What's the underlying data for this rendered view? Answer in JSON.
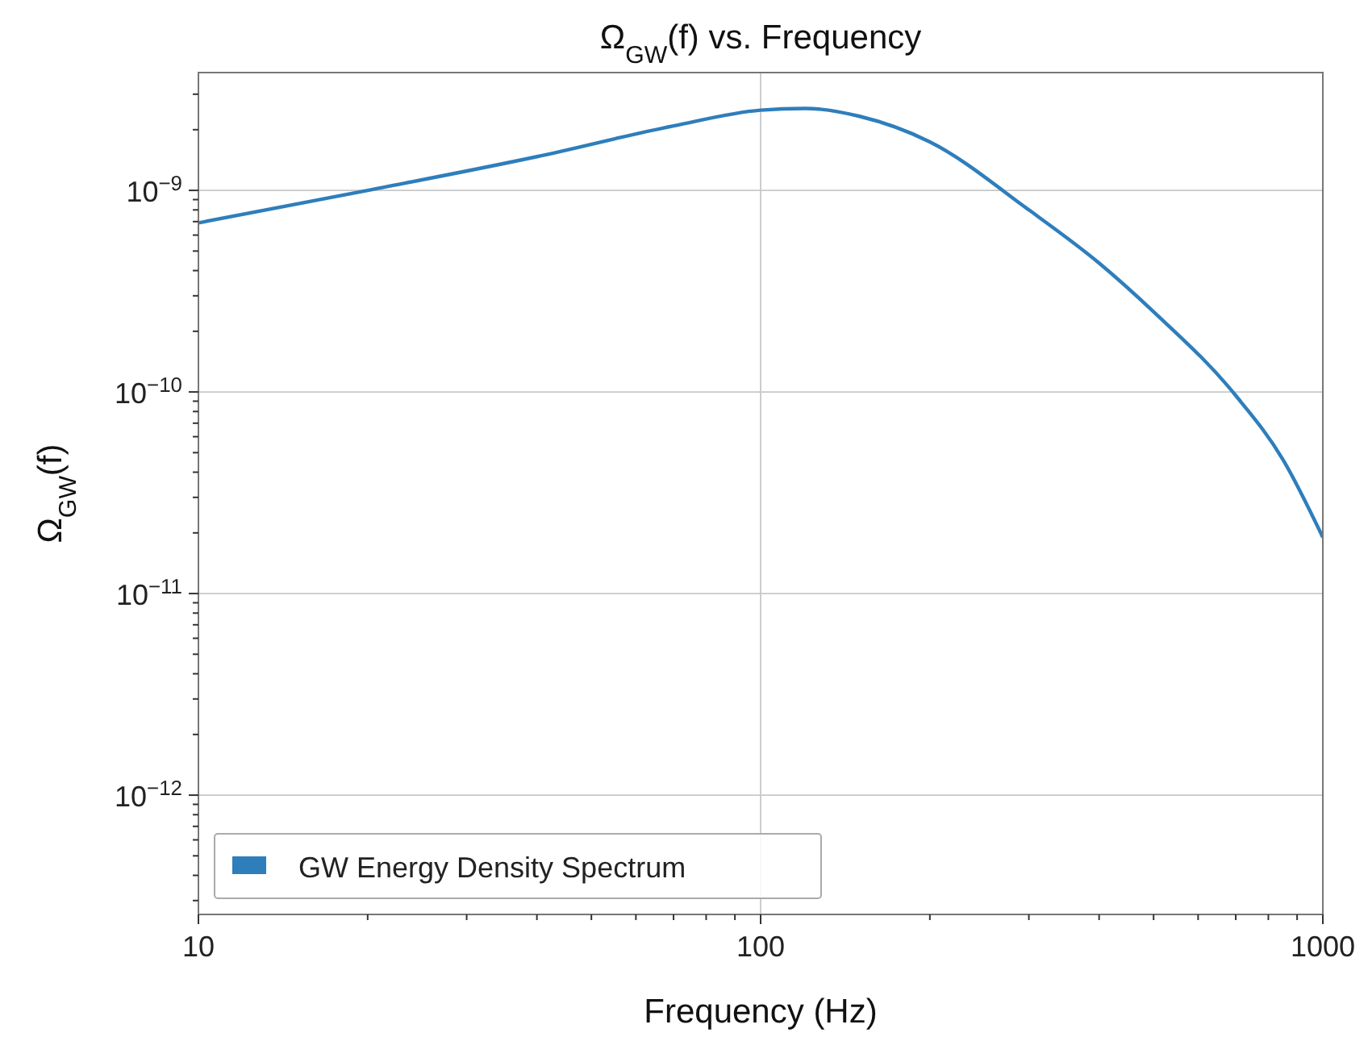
{
  "chart_data": {
    "type": "line",
    "title": "Ω$_{GW}$(f) vs. Frequency",
    "xlabel": "Frequency (Hz)",
    "ylabel": "Ω$_{GW}$(f)",
    "log": "xy",
    "grid": true,
    "legend": "bottom left",
    "marker": "none",
    "line_style": "solid",
    "xlim": [
      10,
      1000
    ],
    "ylim": [
      2.56e-13,
      3.84e-09
    ],
    "xticks": [
      {
        "value": 10,
        "label": "10"
      },
      {
        "value": 20,
        "label": null
      },
      {
        "value": 30,
        "label": null
      },
      {
        "value": 40,
        "label": null
      },
      {
        "value": 50,
        "label": null
      },
      {
        "value": 60,
        "label": null
      },
      {
        "value": 70,
        "label": null
      },
      {
        "value": 80,
        "label": null
      },
      {
        "value": 90,
        "label": null
      },
      {
        "value": 100,
        "label": "100"
      },
      {
        "value": 200,
        "label": null
      },
      {
        "value": 300,
        "label": null
      },
      {
        "value": 400,
        "label": null
      },
      {
        "value": 500,
        "label": null
      },
      {
        "value": 600,
        "label": null
      },
      {
        "value": 700,
        "label": null
      },
      {
        "value": 800,
        "label": null
      },
      {
        "value": 900,
        "label": null
      },
      {
        "value": 1000,
        "label": "1000"
      }
    ],
    "yticks": [
      {
        "value": 3e-13,
        "label": null
      },
      {
        "value": 4e-13,
        "label": null
      },
      {
        "value": 5e-13,
        "label": null
      },
      {
        "value": 6e-13,
        "label": null
      },
      {
        "value": 7e-13,
        "label": null
      },
      {
        "value": 8e-13,
        "label": null
      },
      {
        "value": 9e-13,
        "label": null
      },
      {
        "value": 1e-12,
        "label": "10$^{−12}$"
      },
      {
        "value": 2e-12,
        "label": null
      },
      {
        "value": 3e-12,
        "label": null
      },
      {
        "value": 4e-12,
        "label": null
      },
      {
        "value": 5e-12,
        "label": null
      },
      {
        "value": 6e-12,
        "label": null
      },
      {
        "value": 7e-12,
        "label": null
      },
      {
        "value": 8e-12,
        "label": null
      },
      {
        "value": 9e-12,
        "label": null
      },
      {
        "value": 1e-11,
        "label": "10$^{−11}$"
      },
      {
        "value": 2e-11,
        "label": null
      },
      {
        "value": 3e-11,
        "label": null
      },
      {
        "value": 4e-11,
        "label": null
      },
      {
        "value": 5e-11,
        "label": null
      },
      {
        "value": 6e-11,
        "label": null
      },
      {
        "value": 7e-11,
        "label": null
      },
      {
        "value": 8e-11,
        "label": null
      },
      {
        "value": 9e-11,
        "label": null
      },
      {
        "value": 1e-10,
        "label": "10$^{−10}$"
      },
      {
        "value": 2e-10,
        "label": null
      },
      {
        "value": 3e-10,
        "label": null
      },
      {
        "value": 4e-10,
        "label": null
      },
      {
        "value": 5e-10,
        "label": null
      },
      {
        "value": 6e-10,
        "label": null
      },
      {
        "value": 7e-10,
        "label": null
      },
      {
        "value": 8e-10,
        "label": null
      },
      {
        "value": 9e-10,
        "label": null
      },
      {
        "value": 1e-09,
        "label": "10$^{−9}$"
      },
      {
        "value": 2e-09,
        "label": null
      },
      {
        "value": 3e-09,
        "label": null
      }
    ],
    "series": [
      {
        "name": "GW Energy Density Spectrum",
        "color": "#2e7ebc",
        "x": [
          10,
          20,
          40,
          70,
          100,
          120,
          150,
          200,
          300,
          400,
          500,
          700,
          850,
          1000
        ],
        "values": [
          6.9e-10,
          1e-09,
          1.47e-09,
          2.09e-09,
          2.5e-09,
          2.55e-09,
          2.33e-09,
          1.74e-09,
          8e-10,
          4.36e-10,
          2.5e-10,
          9.6e-11,
          4.6e-11,
          1.9e-11
        ]
      }
    ]
  }
}
